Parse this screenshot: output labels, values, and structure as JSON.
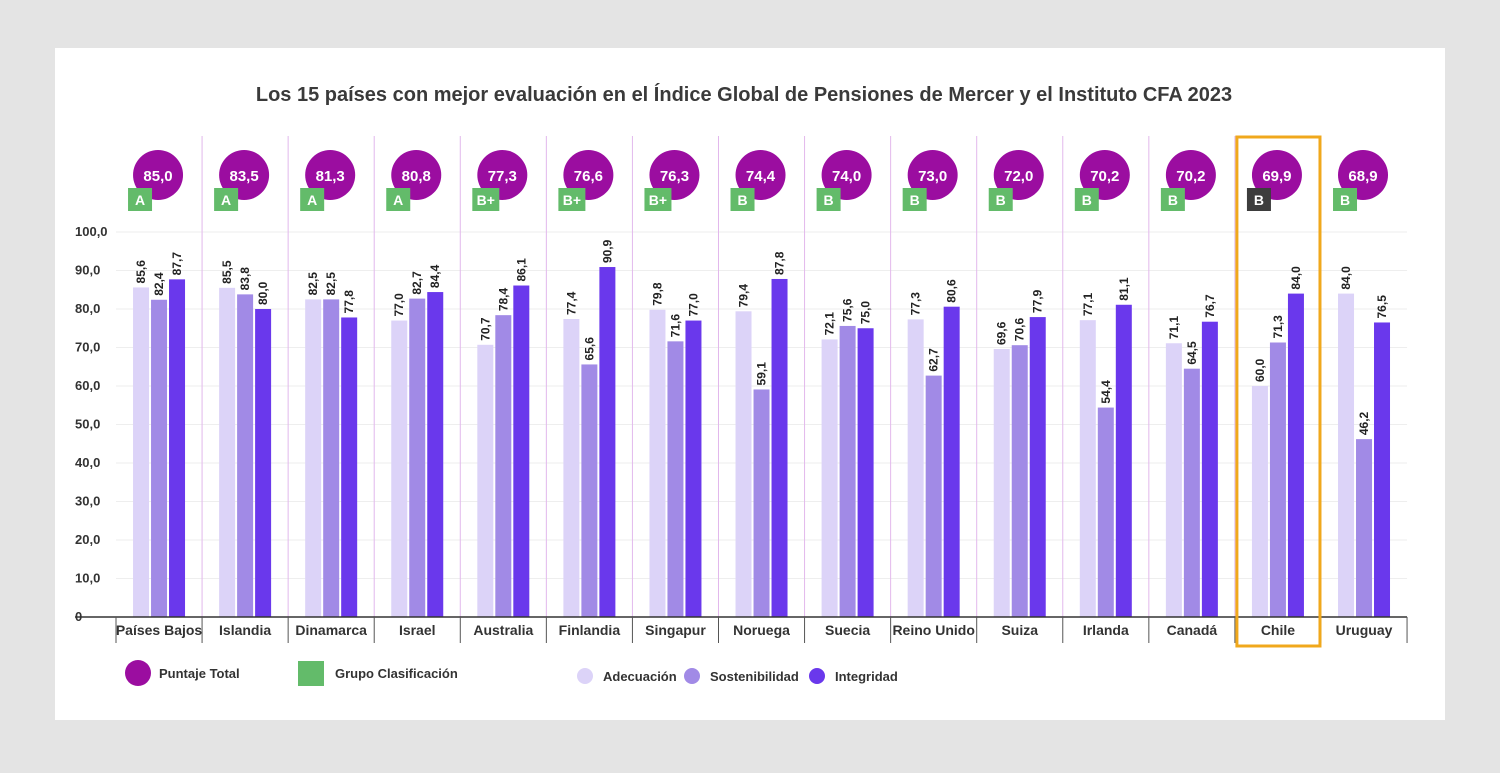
{
  "chart_data": {
    "type": "bar",
    "title": "Los 15 países con mejor evaluación en el Índice Global de Pensiones de Mercer y el Instituto CFA 2023",
    "categories": [
      "Países Bajos",
      "Islandia",
      "Dinamarca",
      "Israel",
      "Australia",
      "Finlandia",
      "Singapur",
      "Noruega",
      "Suecia",
      "Reino Unido",
      "Suiza",
      "Irlanda",
      "Canadá",
      "Chile",
      "Uruguay"
    ],
    "series": [
      {
        "name": "Adecuación",
        "color": "#dcd3f8",
        "values": [
          85.6,
          85.5,
          82.5,
          77.0,
          70.7,
          77.4,
          79.8,
          79.4,
          72.1,
          77.3,
          69.6,
          77.1,
          71.1,
          60.0,
          84.0
        ],
        "labels": [
          "85,6",
          "85,5",
          "82,5",
          "77,0",
          "70,7",
          "77,4",
          "79,8",
          "79,4",
          "72,1",
          "77,3",
          "69,6",
          "77,1",
          "71,1",
          "60,0",
          "84,0"
        ]
      },
      {
        "name": "Sostenibilidad",
        "color": "#a18ae6",
        "values": [
          82.4,
          83.8,
          82.5,
          82.7,
          78.4,
          65.6,
          71.6,
          59.1,
          75.6,
          62.7,
          70.6,
          54.4,
          64.5,
          71.3,
          46.2
        ],
        "labels": [
          "82,4",
          "83,8",
          "82,5",
          "82,7",
          "78,4",
          "65,6",
          "71,6",
          "59,1",
          "75,6",
          "62,7",
          "70,6",
          "54,4",
          "64,5",
          "71,3",
          "46,2"
        ]
      },
      {
        "name": "Integridad",
        "color": "#6a38ec",
        "values": [
          87.7,
          80.0,
          77.8,
          84.4,
          86.1,
          90.9,
          77.0,
          87.8,
          75.0,
          80.6,
          77.9,
          81.1,
          76.7,
          84.0,
          76.5
        ],
        "labels": [
          "87,7",
          "80,0",
          "77,8",
          "84,4",
          "86,1",
          "90,9",
          "77,0",
          "87,8",
          "75,0",
          "80,6",
          "77,9",
          "81,1",
          "76,7",
          "84,0",
          "76,5"
        ]
      }
    ],
    "totals": [
      "85,0",
      "83,5",
      "81,3",
      "80,8",
      "77,3",
      "76,6",
      "76,3",
      "74,4",
      "74,0",
      "73,0",
      "72,0",
      "70,2",
      "70,2",
      "69,9",
      "68,9"
    ],
    "grades": [
      "A",
      "A",
      "A",
      "A",
      "B+",
      "B+",
      "B+",
      "B",
      "B",
      "B",
      "B",
      "B",
      "B",
      "B",
      "B"
    ],
    "highlighted_category": "Chile",
    "yticks": [
      "0",
      "10,0",
      "20,0",
      "30,0",
      "40,0",
      "50,0",
      "60,0",
      "70,0",
      "80,0",
      "90,0",
      "100,0"
    ],
    "ylim": [
      0,
      100
    ],
    "grid": true,
    "legend_position": "bottom-left",
    "legend": {
      "total_label": "Puntaje Total",
      "grade_label": "Grupo Clasificación",
      "series_labels": [
        "Adecuación",
        "Sostenibilidad",
        "Integridad"
      ]
    },
    "colors": {
      "total_circle": "#9b0da0",
      "grade_box": "#63bb6a",
      "grade_box_highlight": "#3d3d3d",
      "highlight_border": "#f0a81c",
      "divider": "#e2b8ec"
    }
  }
}
